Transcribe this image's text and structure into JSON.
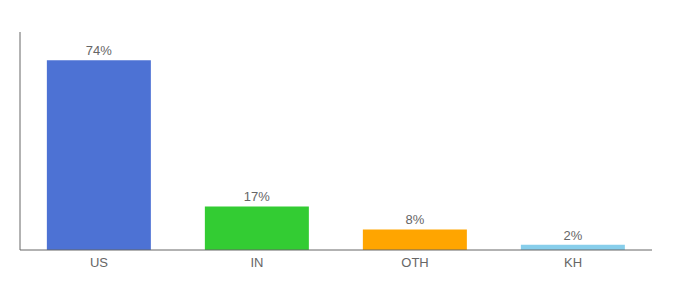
{
  "chart_data": {
    "type": "bar",
    "categories": [
      "US",
      "IN",
      "OTH",
      "KH"
    ],
    "values": [
      74,
      17,
      8,
      2
    ],
    "value_labels": [
      "74%",
      "17%",
      "8%",
      "2%"
    ],
    "colors": [
      "#4d72d4",
      "#33cc33",
      "#ffa500",
      "#87ceeb"
    ],
    "ylim": [
      0,
      85
    ],
    "data_labels": true,
    "tick_labels": "x",
    "grid": false
  }
}
